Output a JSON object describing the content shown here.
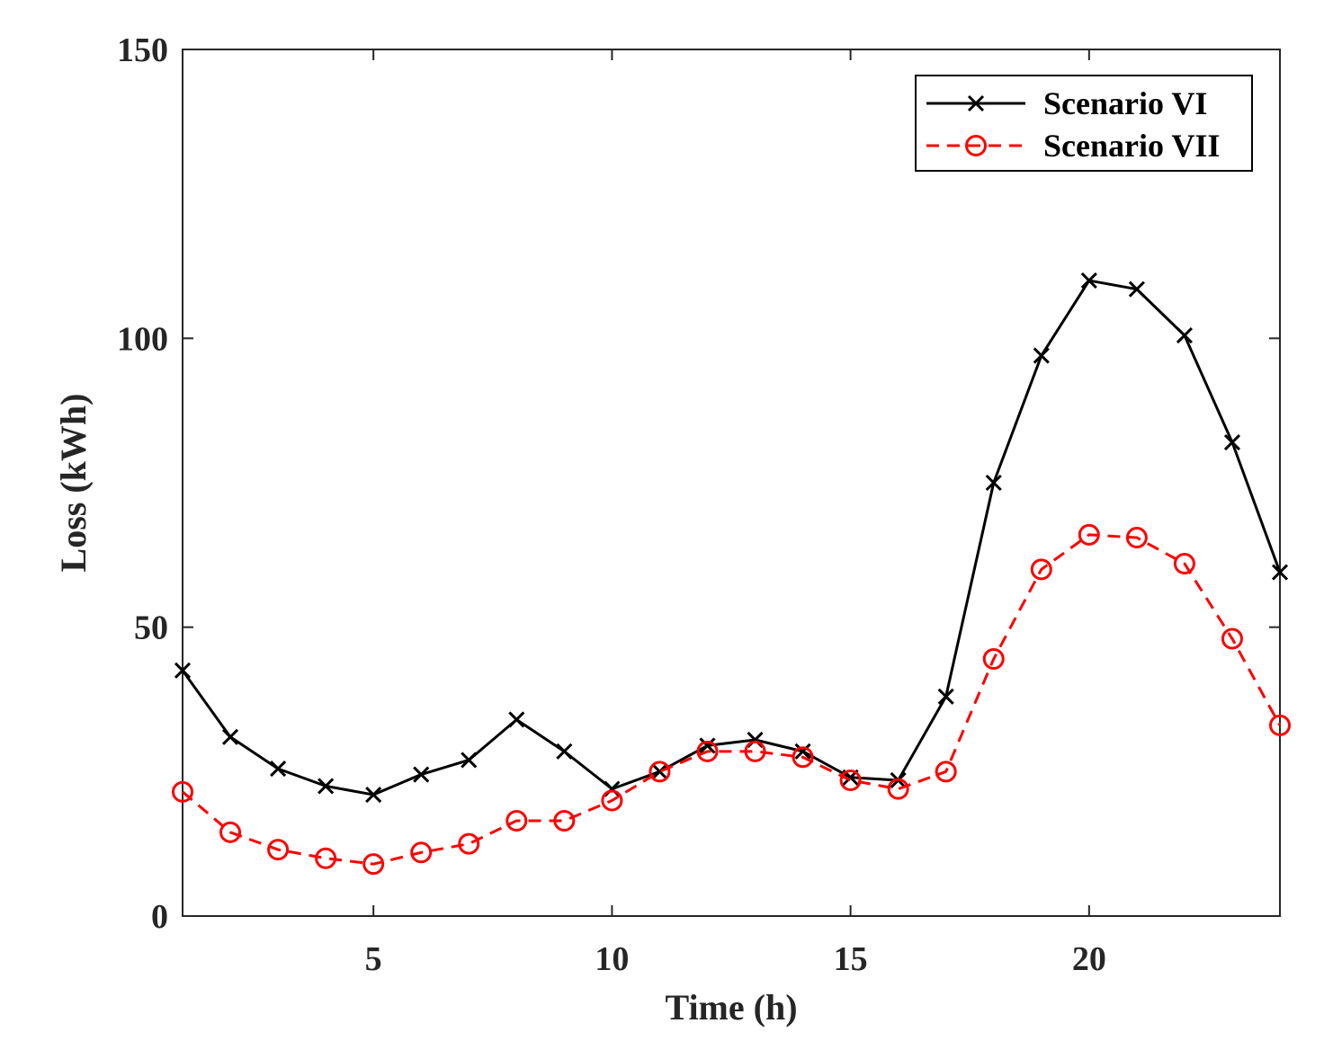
{
  "chart_data": {
    "type": "line",
    "title": "",
    "xlabel": "Time (h)",
    "ylabel": "Loss (kWh)",
    "xlim": [
      1,
      24
    ],
    "ylim": [
      0,
      150
    ],
    "xticks": [
      5,
      10,
      15,
      20
    ],
    "yticks": [
      0,
      50,
      100,
      150
    ],
    "grid": false,
    "legend_position": "top-right",
    "x": [
      1,
      2,
      3,
      4,
      5,
      6,
      7,
      8,
      9,
      10,
      11,
      12,
      13,
      14,
      15,
      16,
      17,
      18,
      19,
      20,
      21,
      22,
      23,
      24
    ],
    "series": [
      {
        "name": "Scenario VI",
        "color": "#000000",
        "line_style": "solid",
        "marker": "x",
        "values": [
          42.5,
          31,
          25.5,
          22.5,
          21,
          24.5,
          27,
          34,
          28.5,
          22,
          25,
          29.5,
          30.5,
          28.5,
          24,
          23.5,
          38,
          75,
          97,
          110,
          108.5,
          100.5,
          82,
          59.5
        ]
      },
      {
        "name": "Scenario VII",
        "color": "#ff0000",
        "line_style": "dashed",
        "marker": "circle",
        "values": [
          21.5,
          14.5,
          11.5,
          10,
          9,
          11,
          12.5,
          16.5,
          16.5,
          20,
          25,
          28.5,
          28.5,
          27.5,
          23.5,
          22,
          25,
          44.5,
          60,
          66,
          65.5,
          61,
          48,
          33
        ]
      }
    ]
  }
}
